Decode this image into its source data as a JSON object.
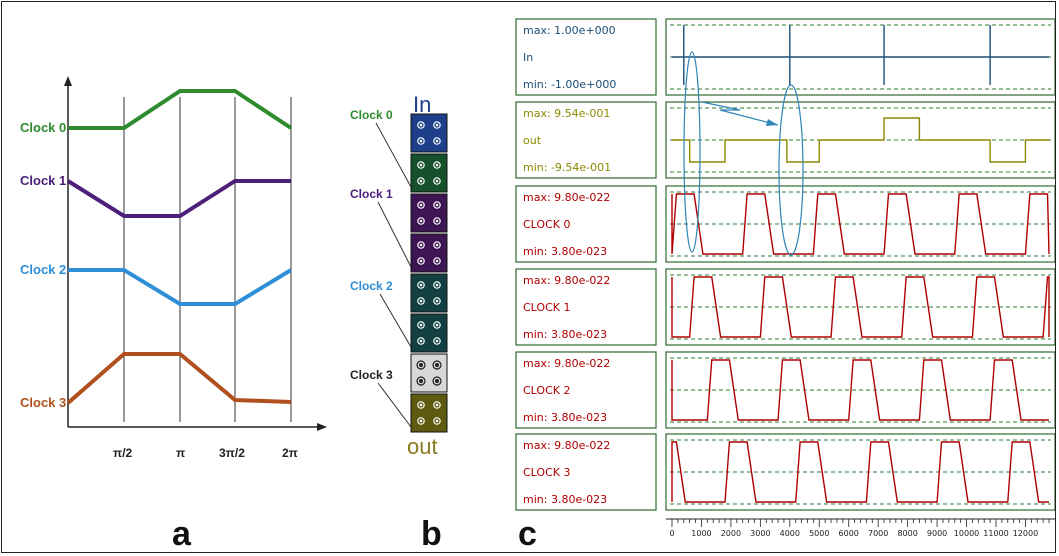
{
  "panel_a": {
    "letter": "a",
    "clock_labels": [
      "Clock 0",
      "Clock 1",
      "Clock 2",
      "Clock 3"
    ],
    "x_ticks": [
      "π/2",
      "π",
      "3π/2",
      "2π"
    ],
    "colors": [
      "#2e8b2e",
      "#4b1f7a",
      "#2e8fd8",
      "#b0501e"
    ]
  },
  "panel_b": {
    "letter": "b",
    "in_label": "In",
    "out_label": "out",
    "clock_labels": [
      "Clock 0",
      "Clock 1",
      "Clock 2",
      "Clock 3"
    ]
  },
  "panel_c": {
    "letter": "c",
    "traces": [
      {
        "max": "max: 1.00e+000",
        "name": "In",
        "min": "min: -1.00e+000",
        "color": "#1c4e78"
      },
      {
        "max": "max: 9.54e-001",
        "name": "out",
        "min": "min: -9.54e-001",
        "color": "#8a8a00"
      },
      {
        "max": "max: 9.80e-022",
        "name": "CLOCK 0",
        "min": "min: 3.80e-023",
        "color": "#b00000"
      },
      {
        "max": "max: 9.80e-022",
        "name": "CLOCK 1",
        "min": "min: 3.80e-023",
        "color": "#b00000"
      },
      {
        "max": "max: 9.80e-022",
        "name": "CLOCK 2",
        "min": "min: 3.80e-023",
        "color": "#b00000"
      },
      {
        "max": "max: 9.80e-022",
        "name": "CLOCK 3",
        "min": "min: 3.80e-023",
        "color": "#b00000"
      }
    ],
    "x_axis_labels": [
      "0",
      "1000",
      "2000",
      "3000",
      "4000",
      "5000",
      "6000",
      "7000",
      "8000",
      "9000",
      "10000",
      "11000",
      "12000"
    ]
  }
}
